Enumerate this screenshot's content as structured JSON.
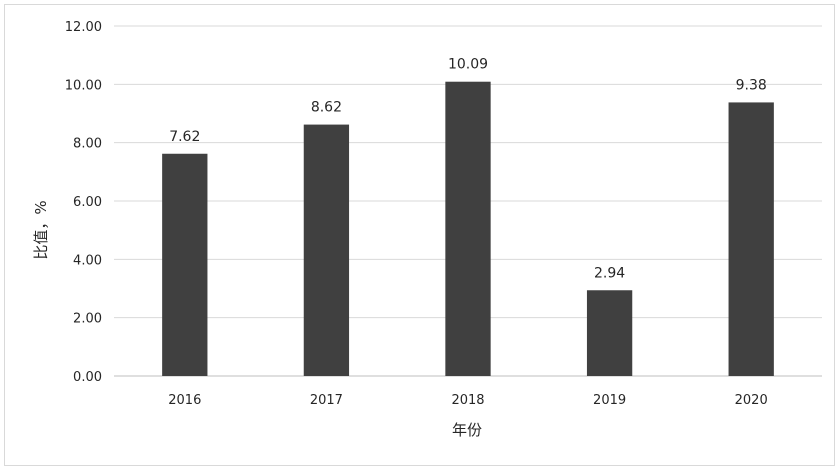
{
  "chart_data": {
    "type": "bar",
    "title": "",
    "xlabel": "年份",
    "ylabel": "比值，%",
    "categories": [
      "2016",
      "2017",
      "2018",
      "2019",
      "2020"
    ],
    "values": [
      7.62,
      8.62,
      10.09,
      2.94,
      9.38
    ],
    "data_labels": [
      "7.62",
      "8.62",
      "10.09",
      "2.94",
      "9.38"
    ],
    "ylim": [
      0,
      12
    ],
    "yticks": [
      0,
      2,
      4,
      6,
      8,
      10,
      12
    ],
    "ytick_labels": [
      "0.00",
      "2.00",
      "4.00",
      "6.00",
      "8.00",
      "10.00",
      "12.00"
    ],
    "grid": true,
    "legend": "none",
    "bar_color": "#404040"
  }
}
